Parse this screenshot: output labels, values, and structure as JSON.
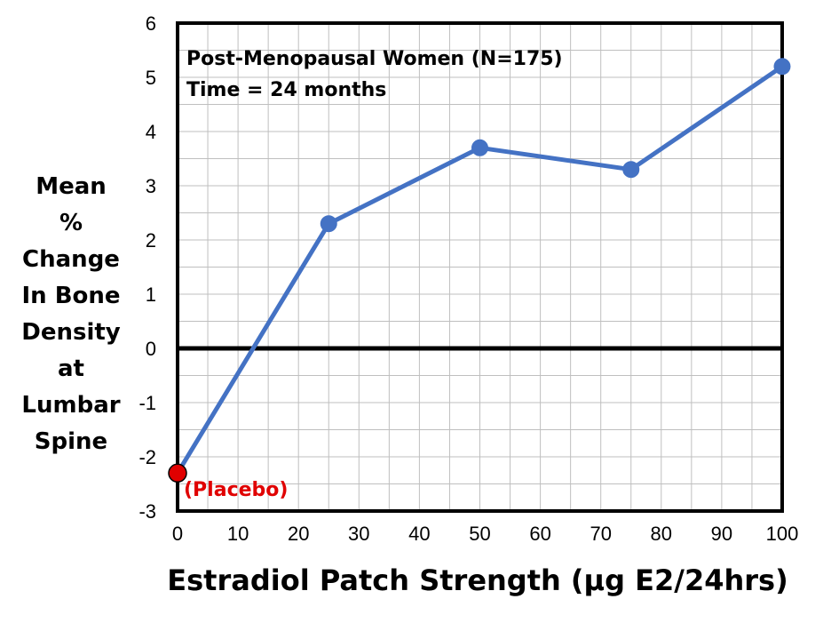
{
  "chart_data": {
    "type": "line",
    "title": "",
    "annotations": [
      "Post-Menopausal Women (N=175)",
      "Time = 24 months"
    ],
    "placebo_label": "(Placebo)",
    "xlabel": "Estradiol Patch Strength (μg E2/24hrs)",
    "ylabel_lines": [
      "Mean",
      "%",
      "Change",
      "In Bone",
      "Density",
      "at",
      "Lumbar",
      "Spine"
    ],
    "x": [
      0,
      25,
      50,
      75,
      100
    ],
    "series": [
      {
        "values": [
          -2.3,
          2.3,
          3.7,
          3.3,
          5.2
        ]
      }
    ],
    "xlim": [
      0,
      100
    ],
    "ylim": [
      -3,
      6
    ],
    "xticks": [
      "0",
      "10",
      "20",
      "30",
      "40",
      "50",
      "60",
      "70",
      "80",
      "90",
      "100"
    ],
    "yticks": [
      "6",
      "5",
      "4",
      "3",
      "2",
      "1",
      "0",
      "-1",
      "-2",
      "-3"
    ],
    "grid": true,
    "colors": {
      "line": "#4472c4",
      "placebo_marker": "#e00000",
      "zero_line": "#000000",
      "grid": "#bfbfbf"
    }
  }
}
